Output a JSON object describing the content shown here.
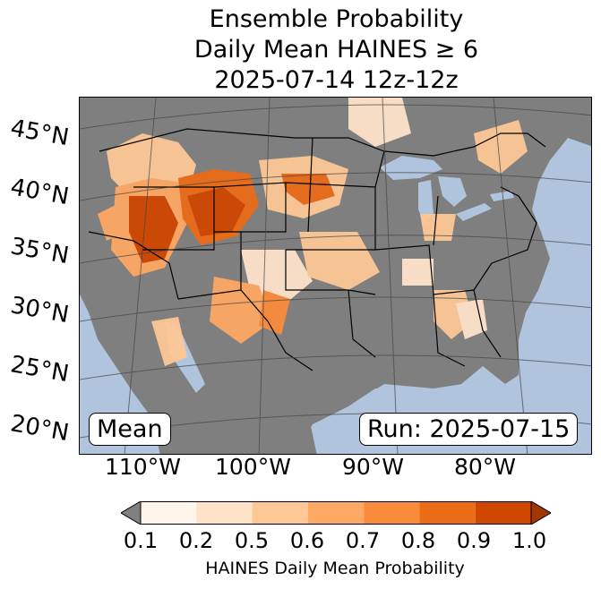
{
  "title": {
    "line1": "Ensemble Probability",
    "line2": "Daily Mean HAINES ≥ 6",
    "line3": "2025-07-14 12z-12z"
  },
  "map": {
    "lat_labels": [
      "45°N",
      "40°N",
      "35°N",
      "30°N",
      "25°N",
      "20°N"
    ],
    "lon_labels": [
      "110°W",
      "100°W",
      "90°W",
      "80°W"
    ],
    "mean_label": "Mean",
    "run_label": "Run: 2025-07-15",
    "colors": {
      "ocean": "#b0c4de",
      "land": "#7f7f7f",
      "lake": "#b0c4de"
    }
  },
  "colorbar": {
    "label": "HAINES Daily Mean Probability",
    "ticks": [
      "0.1",
      "0.2",
      "0.5",
      "0.6",
      "0.7",
      "0.8",
      "0.9",
      "1.0"
    ],
    "colors": [
      "#fff5eb",
      "#fee3c9",
      "#fdc896",
      "#fda863",
      "#fa8b3a",
      "#eb6c17",
      "#d04701"
    ],
    "under_color": "#808080",
    "over_color": "#a33503"
  }
}
